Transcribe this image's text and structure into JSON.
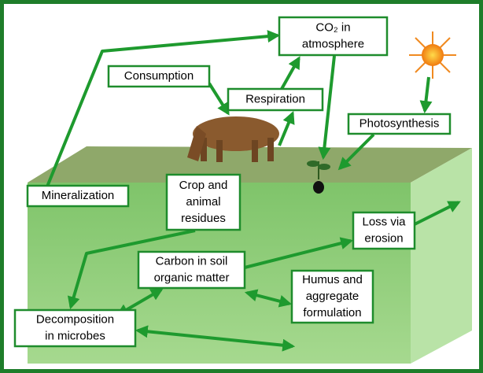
{
  "nodes": [
    {
      "lines": [
        "CO₂ in",
        "atmosphere"
      ]
    },
    {
      "lines": [
        "Consumption"
      ]
    },
    {
      "lines": [
        "Respiration"
      ]
    },
    {
      "lines": [
        "Photosynthesis"
      ]
    },
    {
      "lines": [
        "Mineralization"
      ]
    },
    {
      "lines": [
        "Crop and",
        "animal",
        "residues"
      ]
    },
    {
      "lines": [
        "Loss via",
        "erosion"
      ]
    },
    {
      "lines": [
        "Carbon in soil",
        "organic matter"
      ]
    },
    {
      "lines": [
        "Humus and",
        "aggregate",
        "formulation"
      ]
    },
    {
      "lines": [
        "Decomposition",
        "in microbes"
      ]
    }
  ]
}
